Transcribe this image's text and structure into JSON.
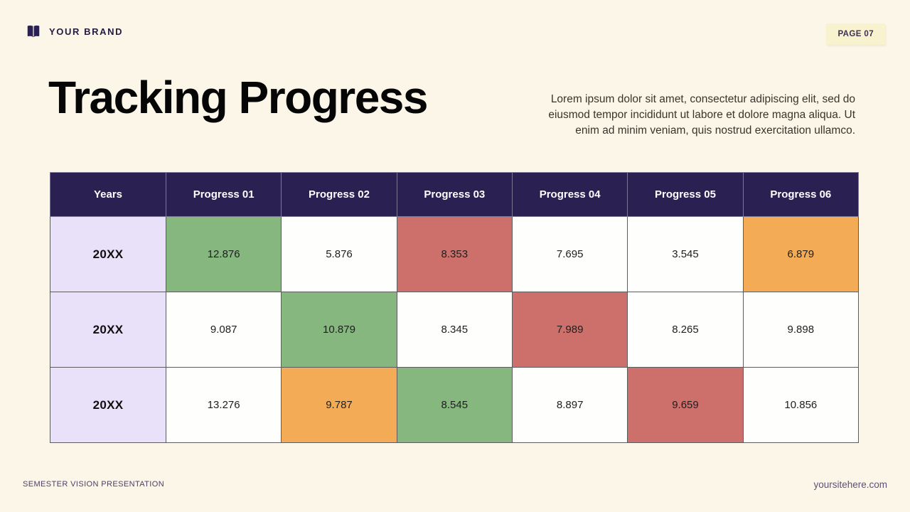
{
  "brand": {
    "name": "YOUR BRAND"
  },
  "page_badge": "PAGE 07",
  "title": "Tracking Progress",
  "description": "Lorem ipsum dolor sit amet, consectetur adipiscing elit, sed do eiusmod tempor incididunt ut labore et dolore magna aliqua. Ut enim ad minim veniam, quis nostrud exercitation ullamco.",
  "footer": {
    "left": "SEMESTER VISION PRESENTATION",
    "right": "yoursitehere.com"
  },
  "colors": {
    "page_bg": "#FBF6E8",
    "header_bg": "#2B2052",
    "header_text": "#FFFFFF",
    "year_cell_bg": "#E9E1F9",
    "green": "#85B77F",
    "red": "#CD706B",
    "orange": "#F3AC55",
    "white": "#FEFEFD",
    "badge_bg": "#F9F2CF",
    "badge_text": "#3B3153"
  },
  "chart_data": {
    "type": "table",
    "columns": [
      "Years",
      "Progress 01",
      "Progress 02",
      "Progress 03",
      "Progress 04",
      "Progress 05",
      "Progress 06"
    ],
    "rows": [
      {
        "year": "20XX",
        "values": [
          "12.876",
          "5.876",
          "8.353",
          "7.695",
          "3.545",
          "6.879"
        ],
        "cell_colors": [
          "green",
          "white",
          "red",
          "white",
          "white",
          "orange"
        ]
      },
      {
        "year": "20XX",
        "values": [
          "9.087",
          "10.879",
          "8.345",
          "7.989",
          "8.265",
          "9.898"
        ],
        "cell_colors": [
          "white",
          "green",
          "white",
          "red",
          "white",
          "white"
        ]
      },
      {
        "year": "20XX",
        "values": [
          "13.276",
          "9.787",
          "8.545",
          "8.897",
          "9.659",
          "10.856"
        ],
        "cell_colors": [
          "white",
          "orange",
          "green",
          "white",
          "red",
          "white"
        ]
      }
    ]
  }
}
